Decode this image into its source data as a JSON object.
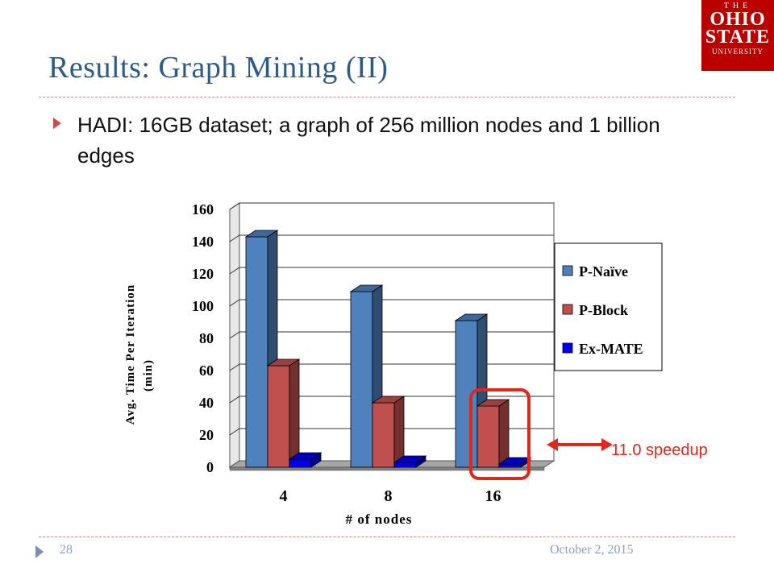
{
  "slide": {
    "title": "Results: Graph Mining (II)",
    "bullet": "HADI: 16GB dataset; a graph of 256 million nodes and 1 billion edges",
    "page_number": "28",
    "date": "October 2, 2015",
    "logo": {
      "line1": "THE",
      "line2": "OHIO",
      "line3": "STATE",
      "line4": "UNIVERSITY"
    },
    "callout": "11.0 speedup"
  },
  "colors": {
    "accent_title": "#2e5b86",
    "bullet_marker": "#c8504b",
    "callout_red": "#e1261c",
    "logo_red": "#bb0000"
  },
  "chart_data": {
    "type": "bar",
    "title": "",
    "xlabel": "# of nodes",
    "ylabel": "Avg. Time Per Iteration (min)",
    "categories": [
      "4",
      "8",
      "16"
    ],
    "series": [
      {
        "name": "P-Naïve",
        "values": [
          143,
          109,
          91
        ],
        "color": "#4f81bd"
      },
      {
        "name": "P-Block",
        "values": [
          63,
          40,
          38
        ],
        "color": "#c0504d"
      },
      {
        "name": "Ex-MATE",
        "values": [
          5,
          3,
          2
        ],
        "color": "#0000ee"
      }
    ],
    "ylim": [
      0,
      160
    ],
    "yticks": [
      0,
      20,
      40,
      60,
      80,
      100,
      120,
      140,
      160
    ],
    "grid": true,
    "legend_position": "right",
    "highlight": {
      "category": "16",
      "series": "P-Block"
    }
  }
}
